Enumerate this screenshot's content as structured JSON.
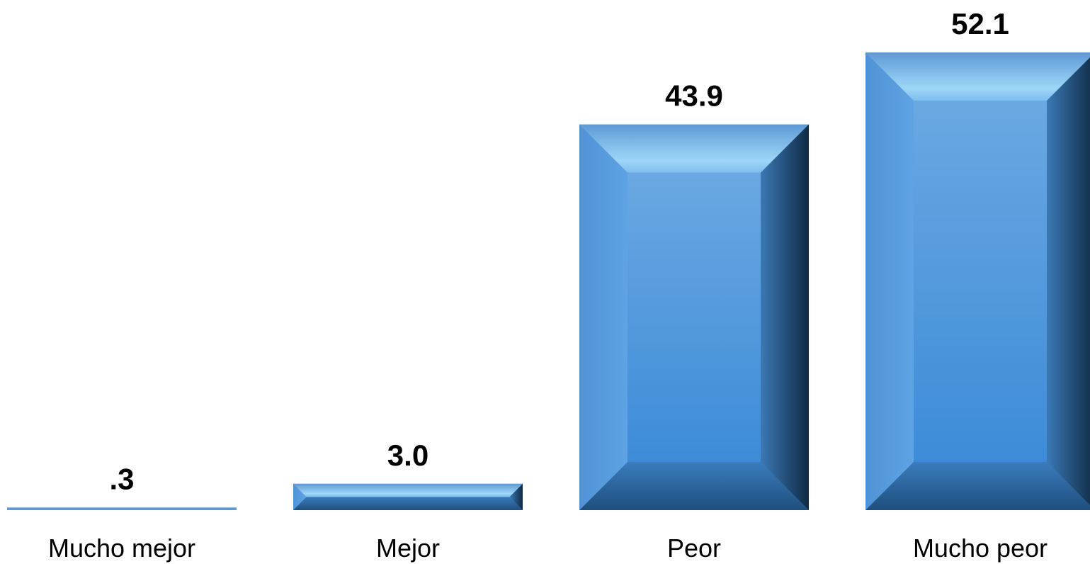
{
  "chart_data": {
    "type": "bar",
    "categories": [
      "Mucho mejor",
      "Mejor",
      "Peor",
      "Mucho peor"
    ],
    "values": [
      0.3,
      3.0,
      43.9,
      52.1
    ],
    "value_labels": [
      ".3",
      "3.0",
      "43.9",
      "52.1"
    ],
    "title": "",
    "xlabel": "",
    "ylabel": "",
    "ylim": [
      0,
      52.1
    ],
    "grid": false,
    "legend": "none",
    "bar_color": "#4a90d9"
  }
}
